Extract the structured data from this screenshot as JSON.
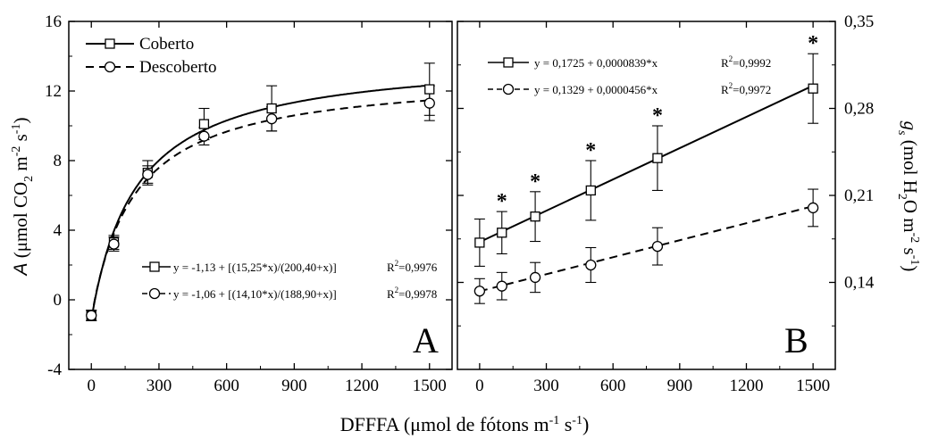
{
  "x_axis_label": {
    "main": "DFFFA (μmol de fótons m",
    "sup1": "-1",
    "mid": " s",
    "sup2": "-1",
    "end": ")"
  },
  "chart_data": [
    {
      "panel": "A",
      "type": "line",
      "panel_label": "A",
      "ylabel": {
        "italic": "A",
        "pre": " (μmol CO",
        "sub": "2",
        "m": " m",
        "sup1": "-2",
        "s": " s",
        "sup2": "-1",
        "end": ")"
      },
      "xlim": [
        -100,
        1600
      ],
      "ylim": [
        -4,
        16
      ],
      "xticks": [
        "0",
        "300",
        "600",
        "900",
        "1200",
        "1500"
      ],
      "yticks": [
        "-4",
        "0",
        "4",
        "8",
        "12",
        "16"
      ],
      "x": [
        0,
        100,
        250,
        500,
        800,
        1500
      ],
      "legend_top": [
        {
          "name": "Coberto",
          "marker": "square",
          "line": "solid"
        },
        {
          "name": "Descoberto",
          "marker": "circle",
          "line": "dashed"
        }
      ],
      "series": [
        {
          "name": "Coberto",
          "marker": "square",
          "line": "solid",
          "values": [
            -0.9,
            3.3,
            7.3,
            10.1,
            11.0,
            12.1
          ],
          "errors": [
            0.3,
            0.4,
            0.7,
            0.9,
            1.3,
            1.5
          ],
          "fit": {
            "a": -1.13,
            "b": 15.25,
            "c": 200.4
          },
          "equation": "y = -1,13 + [(15,25*x)/(200,40+x)]",
          "r2_label": "R",
          "r2_sup": "2",
          "r2_value": "=0,9976"
        },
        {
          "name": "Descoberto",
          "marker": "circle",
          "line": "dashed",
          "values": [
            -0.9,
            3.2,
            7.2,
            9.4,
            10.4,
            11.3
          ],
          "errors": [
            0.3,
            0.4,
            0.5,
            0.5,
            0.7,
            1.0
          ],
          "fit": {
            "a": -1.06,
            "b": 14.1,
            "c": 188.9
          },
          "equation": "y = -1,06 + [(14,10*x)/(188,90+x)]",
          "r2_label": "R",
          "r2_sup": "2",
          "r2_value": "=0,9978"
        }
      ]
    },
    {
      "panel": "B",
      "type": "line",
      "panel_label": "B",
      "ylabel": {
        "italic": "g",
        "isub": "s",
        "pre": " (mol H",
        "sub": "2",
        "m": "O m",
        "sup1": "-2",
        "s": " s",
        "sup2": "-1",
        "end": ")"
      },
      "xlim": [
        -100,
        1600
      ],
      "ylim": [
        0.07,
        0.35
      ],
      "xticks": [
        "0",
        "300",
        "600",
        "900",
        "1200",
        "1500"
      ],
      "yticks": [
        "0,14",
        "0,21",
        "0,28",
        "0,35"
      ],
      "ytick_values": [
        0.14,
        0.21,
        0.28,
        0.35
      ],
      "x": [
        0,
        100,
        250,
        500,
        800,
        1500
      ],
      "significance_marker": "*",
      "series": [
        {
          "name": "Coberto",
          "marker": "square",
          "line": "solid",
          "values": [
            0.172,
            0.18,
            0.193,
            0.214,
            0.24,
            0.296
          ],
          "errors": [
            0.019,
            0.017,
            0.02,
            0.024,
            0.026,
            0.028
          ],
          "fit": {
            "intercept": 0.1725,
            "slope": 8.39e-05
          },
          "equation": "y = 0,1725 + 0,0000839*x",
          "r2_label": "R",
          "r2_sup": "2",
          "r2_value": "=0,9992"
        },
        {
          "name": "Descoberto",
          "marker": "circle",
          "line": "dashed",
          "values": [
            0.133,
            0.137,
            0.144,
            0.154,
            0.169,
            0.2
          ],
          "errors": [
            0.01,
            0.011,
            0.012,
            0.014,
            0.015,
            0.015
          ],
          "fit": {
            "intercept": 0.1329,
            "slope": 4.56e-05
          },
          "equation": "y = 0,1329 + 0,0000456*x",
          "r2_label": "R",
          "r2_sup": "2",
          "r2_value": "=0,9972"
        }
      ]
    }
  ]
}
